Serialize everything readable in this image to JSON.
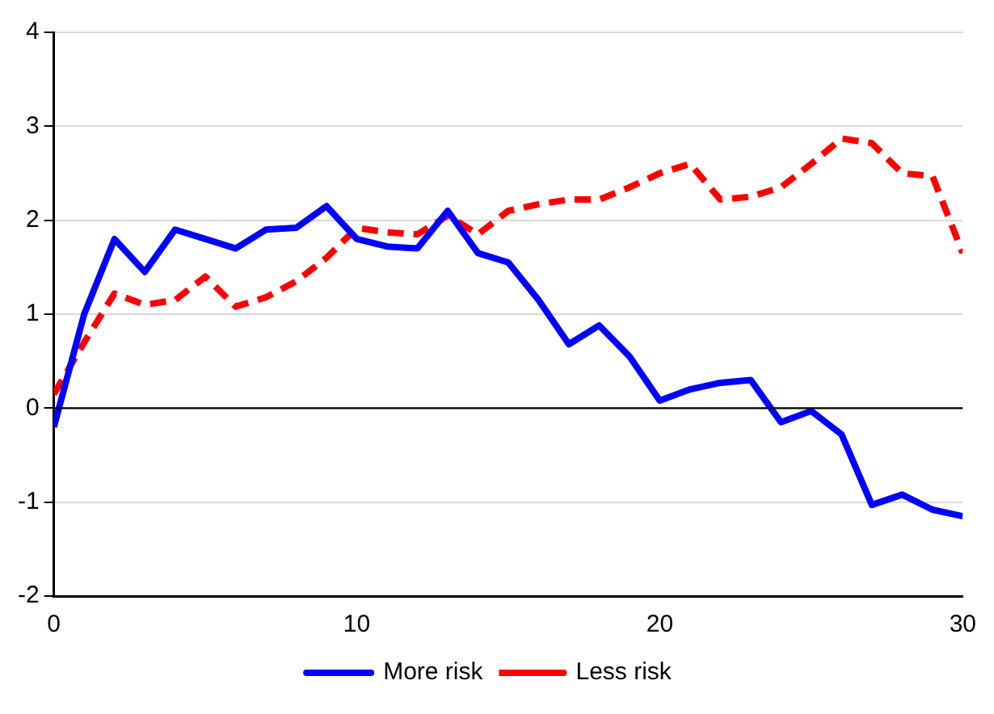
{
  "chart_data": {
    "type": "line",
    "x": [
      0,
      1,
      2,
      3,
      4,
      5,
      6,
      7,
      8,
      9,
      10,
      11,
      12,
      13,
      14,
      15,
      16,
      17,
      18,
      19,
      20,
      21,
      22,
      23,
      24,
      25,
      26,
      27,
      28,
      29,
      30
    ],
    "series": [
      {
        "name": "More risk",
        "color": "#0000ff",
        "line_style": "solid",
        "values": [
          -0.2,
          1.0,
          1.8,
          1.45,
          1.9,
          1.8,
          1.7,
          1.9,
          1.92,
          2.15,
          1.8,
          1.72,
          1.7,
          2.1,
          1.65,
          1.55,
          1.15,
          0.68,
          0.88,
          0.55,
          0.08,
          0.2,
          0.27,
          0.3,
          -0.15,
          -0.03,
          -0.28,
          -1.03,
          -0.92,
          -1.08,
          -1.15
        ]
      },
      {
        "name": "Less risk",
        "color": "#ff0000",
        "line_style": "dashed",
        "values": [
          0.15,
          0.7,
          1.22,
          1.1,
          1.15,
          1.4,
          1.08,
          1.18,
          1.35,
          1.6,
          1.92,
          1.87,
          1.85,
          2.05,
          1.85,
          2.1,
          2.17,
          2.22,
          2.22,
          2.35,
          2.5,
          2.6,
          2.22,
          2.25,
          2.35,
          2.6,
          2.87,
          2.82,
          2.5,
          2.47,
          1.65
        ]
      }
    ],
    "xlim": [
      0,
      30
    ],
    "xticks": [
      0,
      10,
      20,
      30
    ],
    "ylim": [
      -2,
      4
    ],
    "yticks": [
      -2,
      -1,
      0,
      1,
      2,
      3,
      4
    ],
    "grid": "y",
    "legend": "bottom",
    "marker": "none",
    "ref_lines": [
      {
        "axis": "y",
        "value": 0,
        "color": "#000000"
      }
    ]
  }
}
